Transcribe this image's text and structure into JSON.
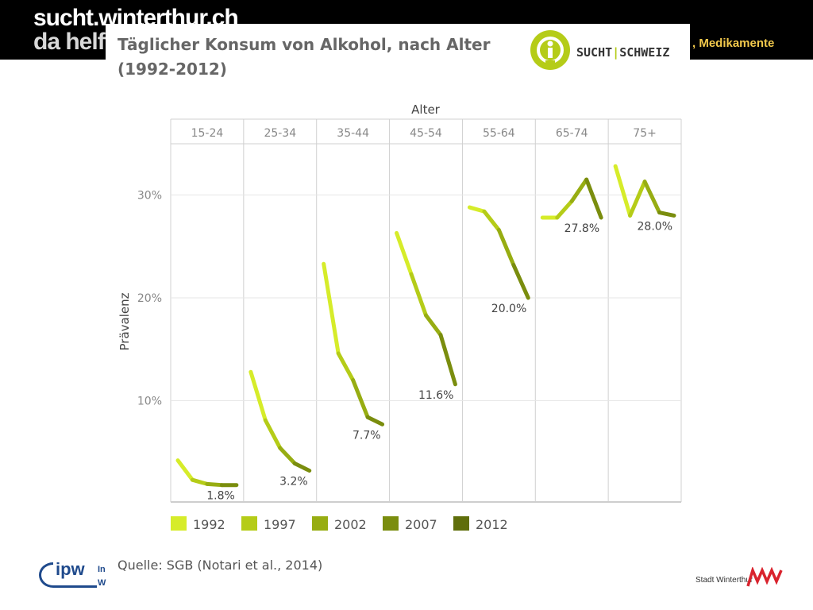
{
  "header": {
    "site_title_line1": "sucht.winterthur.ch",
    "site_title_line2": "da helft",
    "tagline": ", Medikamente"
  },
  "logo": {
    "left": "SUCHT",
    "sep": "|",
    "right": "SCHWEIZ",
    "color": "#b5cc18",
    "icon": "person-in-circle-icon"
  },
  "chart_data": {
    "type": "line",
    "title": "Täglicher Konsum von Alkohol, nach Alter",
    "subtitle": "(1992-2012)",
    "xlabel": "Alter",
    "ylabel": "Prävalenz",
    "ylim": [
      0,
      37.5
    ],
    "y_ticks": [
      "10%",
      "20%",
      "30%"
    ],
    "y_tick_values": [
      10,
      20,
      30
    ],
    "grid": true,
    "legend_position": "bottom",
    "years": [
      "1992",
      "1997",
      "2002",
      "2007",
      "2012"
    ],
    "year_colors": [
      "#d6ec2a",
      "#b5cc18",
      "#97ad12",
      "#7a8d0e",
      "#5f6e0b"
    ],
    "panels": [
      {
        "label": "15-24",
        "values": [
          4.2,
          2.3,
          1.9,
          1.8,
          1.8
        ],
        "end_label": "1.8%"
      },
      {
        "label": "25-34",
        "values": [
          12.8,
          8.1,
          5.4,
          3.9,
          3.2
        ],
        "end_label": "3.2%"
      },
      {
        "label": "35-44",
        "values": [
          23.3,
          14.6,
          12.0,
          8.4,
          7.7
        ],
        "end_label": "7.7%"
      },
      {
        "label": "45-54",
        "values": [
          26.3,
          22.3,
          18.3,
          16.4,
          11.6
        ],
        "end_label": "11.6%"
      },
      {
        "label": "55-64",
        "values": [
          28.8,
          28.4,
          26.6,
          23.2,
          20.0
        ],
        "end_label": "20.0%"
      },
      {
        "label": "65-74",
        "values": [
          27.8,
          27.8,
          29.4,
          31.5,
          27.8
        ],
        "end_label": "27.8%"
      },
      {
        "label": "75+",
        "values": [
          32.8,
          28.0,
          31.3,
          28.3,
          28.0
        ],
        "end_label": "28.0%"
      }
    ]
  },
  "source": "Quelle: SGB (Notari et al., 2014)",
  "footer": {
    "ipw": "ipw",
    "ipw_side_1": "In",
    "ipw_side_2": "W",
    "stadt": "Stadt Winterthur"
  }
}
